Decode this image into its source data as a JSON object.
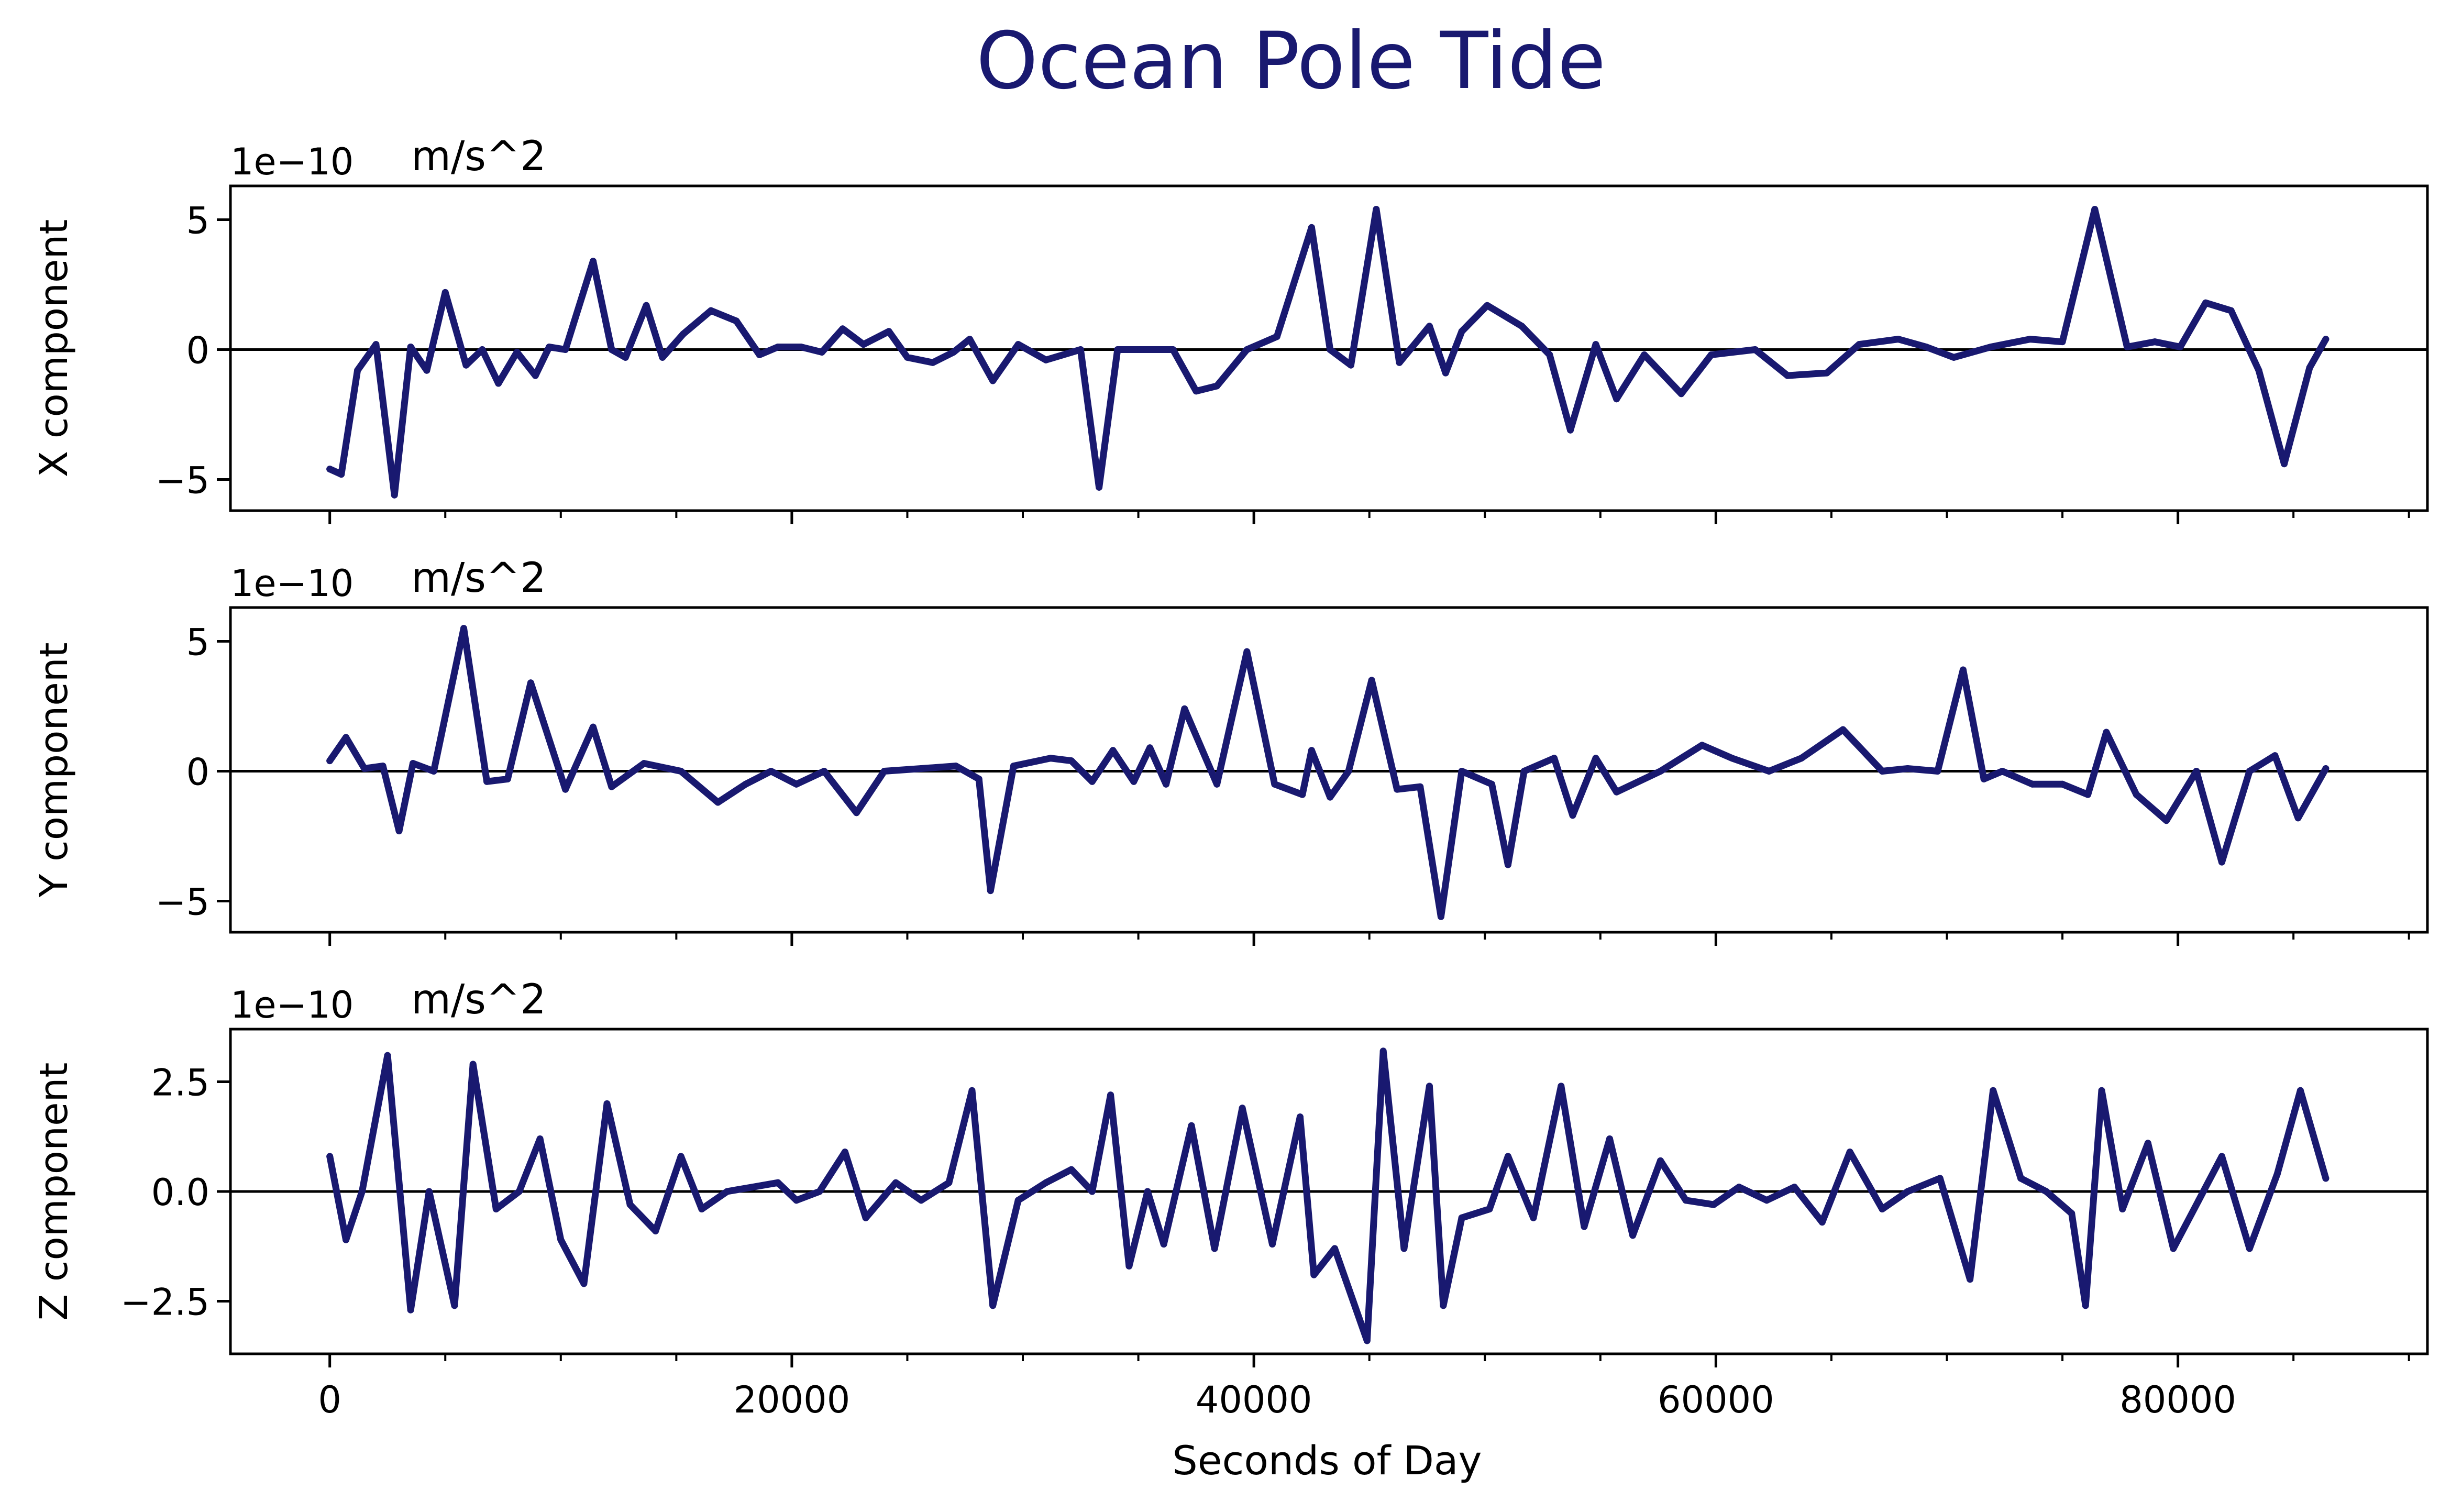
{
  "chart_data": {
    "title": "Ocean Pole Tide",
    "title_color": "#191970",
    "line_color": "#191970",
    "zero_line_color": "#000000",
    "type": "line",
    "xlabel": "Seconds of Day",
    "xlim": [
      -4300,
      90800
    ],
    "xticks": [
      0,
      20000,
      40000,
      60000,
      80000
    ],
    "xtick_labels": [
      "0",
      "20000",
      "40000",
      "60000",
      "80000"
    ],
    "panels": [
      {
        "ylabel": "X component",
        "offset_text": "1e−10",
        "unit": "m/s^2",
        "ylim": [
          -6.2,
          6.3
        ],
        "yticks": [
          -5,
          0,
          5
        ],
        "ytick_labels": [
          "−5",
          "0",
          "5"
        ],
        "series": {
          "x": [
            0,
            500,
            1200,
            2000,
            2800,
            3500,
            4200,
            5000,
            5900,
            6600,
            7300,
            8100,
            8900,
            9500,
            10200,
            11400,
            12200,
            12800,
            13700,
            14400,
            15300,
            16500,
            17600,
            18600,
            19400,
            20400,
            21300,
            22200,
            23100,
            24200,
            25000,
            26100,
            27000,
            27700,
            28700,
            29800,
            31000,
            32500,
            33300,
            34100,
            35100,
            36500,
            37500,
            38400,
            39700,
            41000,
            42500,
            43300,
            44200,
            45300,
            46300,
            47600,
            48300,
            49000,
            50100,
            51600,
            52800,
            53700,
            54800,
            55700,
            56900,
            58500,
            59800,
            61700,
            63100,
            64800,
            66200,
            67900,
            69100,
            70300,
            71900,
            73600,
            75000,
            76400,
            77800,
            79000,
            80100,
            81200,
            82300,
            83500,
            84600,
            85700,
            86400
          ],
          "y": [
            -4.6,
            -4.8,
            -0.8,
            0.2,
            -5.6,
            0.1,
            -0.8,
            2.2,
            -0.6,
            0.0,
            -1.3,
            -0.1,
            -1.0,
            0.1,
            0.0,
            3.4,
            0.0,
            -0.3,
            1.7,
            -0.3,
            0.6,
            1.5,
            1.1,
            -0.2,
            0.1,
            0.1,
            -0.1,
            0.8,
            0.2,
            0.7,
            -0.3,
            -0.5,
            -0.1,
            0.4,
            -1.2,
            0.2,
            -0.4,
            0.0,
            -5.3,
            0.0,
            0.0,
            0.0,
            -1.6,
            -1.4,
            0.0,
            0.5,
            4.7,
            0.0,
            -0.6,
            5.4,
            -0.5,
            0.9,
            -0.9,
            0.7,
            1.7,
            0.9,
            -0.2,
            -3.1,
            0.2,
            -1.9,
            -0.2,
            -1.7,
            -0.2,
            0.0,
            -1.0,
            -0.9,
            0.2,
            0.4,
            0.1,
            -0.3,
            0.1,
            0.4,
            0.3,
            5.4,
            0.1,
            0.3,
            0.1,
            1.8,
            1.5,
            -0.8,
            -4.4,
            -0.7,
            0.4
          ]
        }
      },
      {
        "ylabel": "Y component",
        "offset_text": "1e−10",
        "unit": "m/s^2",
        "ylim": [
          -6.2,
          6.3
        ],
        "yticks": [
          -5,
          0,
          5
        ],
        "ytick_labels": [
          "−5",
          "0",
          "5"
        ],
        "series": {
          "x": [
            0,
            700,
            1500,
            2300,
            3000,
            3600,
            4500,
            5800,
            6800,
            7700,
            8700,
            10200,
            11400,
            12200,
            13600,
            15200,
            16800,
            18000,
            19100,
            20200,
            21400,
            22800,
            24000,
            25600,
            27100,
            28100,
            28600,
            29600,
            31200,
            32100,
            33000,
            33900,
            34800,
            35500,
            36200,
            37000,
            38400,
            39700,
            40900,
            42100,
            42500,
            43300,
            44100,
            45100,
            46200,
            47200,
            48100,
            49000,
            50300,
            51000,
            51700,
            53000,
            53800,
            54800,
            55700,
            57600,
            59400,
            60700,
            62300,
            63700,
            65500,
            67200,
            68300,
            69600,
            70700,
            71600,
            72400,
            73700,
            75000,
            76100,
            76900,
            78200,
            79500,
            80800,
            81900,
            83100,
            84200,
            85200,
            86400
          ],
          "y": [
            0.4,
            1.3,
            0.1,
            0.2,
            -2.3,
            0.3,
            0.0,
            5.5,
            -0.4,
            -0.3,
            3.4,
            -0.7,
            1.7,
            -0.6,
            0.3,
            0.0,
            -1.2,
            -0.5,
            0.0,
            -0.5,
            0.0,
            -1.6,
            0.0,
            0.1,
            0.2,
            -0.3,
            -4.6,
            0.2,
            0.5,
            0.4,
            -0.4,
            0.8,
            -0.4,
            0.9,
            -0.5,
            2.4,
            -0.5,
            4.6,
            -0.5,
            -0.9,
            0.8,
            -1.0,
            0.0,
            3.5,
            -0.7,
            -0.6,
            -5.6,
            0.0,
            -0.5,
            -3.6,
            0.0,
            0.5,
            -1.7,
            0.5,
            -0.8,
            0.0,
            1.0,
            0.5,
            0.0,
            0.5,
            1.6,
            0.0,
            0.1,
            0.0,
            3.9,
            -0.3,
            0.0,
            -0.5,
            -0.5,
            -0.9,
            1.5,
            -0.9,
            -1.9,
            0.0,
            -3.5,
            0.0,
            0.6,
            -1.8,
            0.1
          ]
        }
      },
      {
        "ylabel": "Z component",
        "offset_text": "1e−10",
        "unit": "m/s^2",
        "ylim": [
          -3.7,
          3.7
        ],
        "yticks": [
          -2.5,
          0.0,
          2.5
        ],
        "ytick_labels": [
          "−2.5",
          "0.0",
          "2.5"
        ],
        "series": {
          "x": [
            0,
            700,
            1400,
            2500,
            3500,
            4300,
            5400,
            6200,
            7200,
            8200,
            9100,
            10000,
            11000,
            12000,
            13000,
            14100,
            15200,
            16100,
            17200,
            18300,
            19400,
            20200,
            21200,
            22300,
            23200,
            24500,
            25600,
            26800,
            27800,
            28700,
            29800,
            31000,
            32100,
            33000,
            33800,
            34600,
            35400,
            36100,
            37300,
            38300,
            39500,
            40800,
            42000,
            42600,
            43500,
            44900,
            45600,
            46500,
            47600,
            48200,
            49000,
            50200,
            51000,
            52100,
            53300,
            54300,
            55400,
            56400,
            57600,
            58700,
            59900,
            61000,
            62200,
            63400,
            64600,
            65800,
            67200,
            68300,
            69700,
            71000,
            72000,
            73200,
            74300,
            75400,
            76000,
            76700,
            77600,
            78700,
            79800,
            80900,
            81900,
            83100,
            84300,
            85300,
            86400
          ],
          "y": [
            0.8,
            -1.1,
            0.0,
            3.1,
            -2.7,
            0.0,
            -2.6,
            2.9,
            -0.4,
            0.0,
            1.2,
            -1.1,
            -2.1,
            2.0,
            -0.3,
            -0.9,
            0.8,
            -0.4,
            0.0,
            0.1,
            0.2,
            -0.2,
            0.0,
            0.9,
            -0.6,
            0.2,
            -0.2,
            0.2,
            2.3,
            -2.6,
            -0.2,
            0.2,
            0.5,
            0.0,
            2.2,
            -1.7,
            0.0,
            -1.2,
            1.5,
            -1.3,
            1.9,
            -1.2,
            1.7,
            -1.9,
            -1.3,
            -3.4,
            3.2,
            -1.3,
            2.4,
            -2.6,
            -0.6,
            -0.4,
            0.8,
            -0.6,
            2.4,
            -0.8,
            1.2,
            -1.0,
            0.7,
            -0.2,
            -0.3,
            0.1,
            -0.2,
            0.1,
            -0.7,
            0.9,
            -0.4,
            0.0,
            0.3,
            -2.0,
            2.3,
            0.3,
            0.0,
            -0.5,
            -2.6,
            2.3,
            -0.4,
            1.1,
            -1.3,
            -0.2,
            0.8,
            -1.3,
            0.4,
            2.3,
            0.3
          ]
        }
      }
    ]
  }
}
